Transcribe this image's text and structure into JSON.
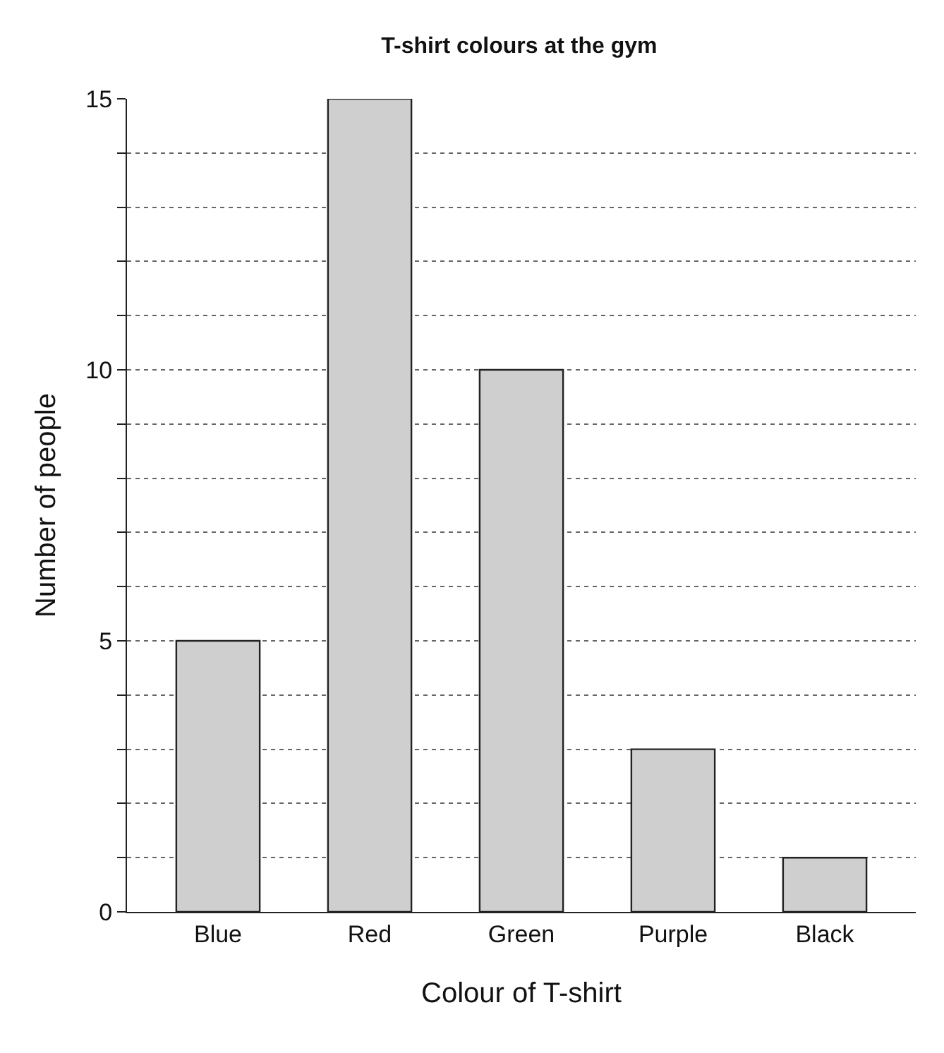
{
  "chart_data": {
    "type": "bar",
    "title": "T-shirt colours at the gym",
    "xlabel": "Colour of T-shirt",
    "ylabel": "Number of people",
    "categories": [
      "Blue",
      "Red",
      "Green",
      "Purple",
      "Black"
    ],
    "values": [
      5,
      15,
      10,
      3,
      1
    ],
    "color": "#cfcfcf",
    "ylim": [
      0,
      15
    ],
    "yticks": [
      0,
      {
        "value": 1,
        "label": null
      },
      {
        "value": 2,
        "label": null
      },
      {
        "value": 3,
        "label": null
      },
      {
        "value": 4,
        "label": null
      },
      5,
      {
        "value": 6,
        "label": null
      },
      {
        "value": 7,
        "label": null
      },
      {
        "value": 8,
        "label": null
      },
      {
        "value": 9,
        "label": null
      },
      10,
      {
        "value": 11,
        "label": null
      },
      {
        "value": 12,
        "label": null
      },
      {
        "value": 13,
        "label": null
      },
      {
        "value": 14,
        "label": null
      },
      15
    ],
    "grid": "y"
  }
}
